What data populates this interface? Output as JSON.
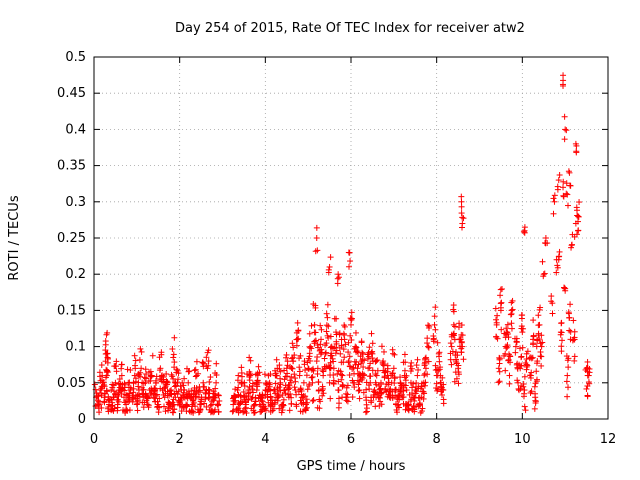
{
  "chart_data": {
    "type": "scatter",
    "title": "Day 254 of 2015, Rate Of TEC Index for receiver atw2",
    "xlabel": "GPS time / hours",
    "ylabel": "ROTI / TECUs",
    "xlim": [
      0,
      12
    ],
    "ylim": [
      0,
      0.5
    ],
    "xticks": [
      0,
      2,
      4,
      6,
      8,
      10,
      12
    ],
    "yticks": [
      0,
      0.05,
      0.1,
      0.15,
      0.2,
      0.25,
      0.3,
      0.35,
      0.4,
      0.45,
      0.5
    ],
    "grid": true,
    "marker": "+",
    "color": "#ff0000",
    "series": [
      {
        "name": "ROTI",
        "x": [
          0.05,
          0.1,
          0.15,
          0.2,
          0.25,
          0.28,
          0.3,
          0.35,
          0.4,
          0.45,
          0.5,
          0.55,
          0.6,
          0.65,
          0.7,
          0.75,
          0.8,
          0.85,
          0.9,
          0.95,
          1.0,
          1.05,
          1.1,
          1.15,
          1.2,
          1.25,
          1.3,
          1.35,
          1.4,
          1.45,
          1.5,
          1.55,
          1.6,
          1.65,
          1.7,
          1.75,
          1.8,
          1.85,
          1.9,
          1.95,
          2.0,
          2.05,
          2.1,
          2.15,
          2.2,
          2.25,
          2.3,
          2.35,
          2.4,
          2.45,
          2.5,
          2.55,
          2.6,
          2.65,
          2.7,
          2.75,
          2.8,
          2.85,
          2.9,
          3.25,
          3.3,
          3.35,
          3.4,
          3.45,
          3.5,
          3.55,
          3.6,
          3.65,
          3.7,
          3.75,
          3.8,
          3.85,
          3.9,
          3.95,
          4.0,
          4.05,
          4.1,
          4.15,
          4.2,
          4.25,
          4.3,
          4.35,
          4.4,
          4.45,
          4.5,
          4.55,
          4.6,
          4.65,
          4.7,
          4.75,
          4.8,
          4.85,
          4.9,
          4.95,
          5.0,
          5.05,
          5.1,
          5.15,
          5.2,
          5.25,
          5.3,
          5.35,
          5.4,
          5.45,
          5.5,
          5.55,
          5.6,
          5.65,
          5.7,
          5.75,
          5.8,
          5.85,
          5.9,
          5.95,
          6.0,
          6.05,
          6.1,
          6.15,
          6.2,
          6.25,
          6.3,
          6.35,
          6.4,
          6.45,
          6.5,
          6.55,
          6.6,
          6.65,
          6.7,
          6.75,
          6.8,
          6.85,
          6.9,
          6.95,
          7.0,
          7.05,
          7.1,
          7.15,
          7.2,
          7.25,
          7.3,
          7.35,
          7.4,
          7.45,
          7.5,
          7.55,
          7.6,
          7.65,
          7.7,
          7.75,
          7.8,
          7.95,
          8.0,
          8.05,
          8.1,
          8.15,
          8.35,
          8.4,
          8.45,
          8.5,
          8.55,
          8.6,
          9.4,
          9.45,
          9.5,
          9.6,
          9.65,
          9.7,
          9.75,
          9.85,
          9.9,
          9.95,
          10.0,
          10.05,
          10.1,
          10.2,
          10.25,
          10.3,
          10.35,
          10.4,
          10.45,
          10.5,
          10.55,
          10.7,
          10.75,
          10.85,
          10.9,
          10.95,
          11.0,
          11.05,
          11.1,
          11.15,
          11.2,
          11.25,
          11.3,
          11.5,
          11.55,
          0.3,
          1.85,
          5.2,
          5.5,
          5.7,
          5.95,
          8.58,
          8.6,
          10.05,
          10.95,
          11.0,
          11.05,
          11.1,
          11.25,
          11.3,
          10.8,
          10.85
        ],
        "y": [
          0.03,
          0.02,
          0.04,
          0.05,
          0.03,
          0.09,
          0.06,
          0.02,
          0.04,
          0.03,
          0.05,
          0.02,
          0.04,
          0.06,
          0.03,
          0.02,
          0.05,
          0.04,
          0.03,
          0.06,
          0.02,
          0.04,
          0.07,
          0.03,
          0.05,
          0.02,
          0.04,
          0.06,
          0.03,
          0.05,
          0.02,
          0.07,
          0.04,
          0.03,
          0.05,
          0.02,
          0.04,
          0.02,
          0.03,
          0.05,
          0.02,
          0.03,
          0.04,
          0.02,
          0.05,
          0.03,
          0.02,
          0.04,
          0.06,
          0.03,
          0.02,
          0.05,
          0.03,
          0.07,
          0.04,
          0.02,
          0.03,
          0.05,
          0.02,
          0.02,
          0.03,
          0.04,
          0.02,
          0.05,
          0.03,
          0.02,
          0.04,
          0.06,
          0.03,
          0.02,
          0.04,
          0.05,
          0.03,
          0.02,
          0.04,
          0.03,
          0.05,
          0.02,
          0.04,
          0.06,
          0.03,
          0.05,
          0.02,
          0.04,
          0.07,
          0.03,
          0.05,
          0.08,
          0.04,
          0.11,
          0.06,
          0.03,
          0.05,
          0.02,
          0.07,
          0.1,
          0.05,
          0.13,
          0.08,
          0.04,
          0.11,
          0.06,
          0.09,
          0.14,
          0.05,
          0.1,
          0.07,
          0.12,
          0.04,
          0.09,
          0.06,
          0.11,
          0.03,
          0.08,
          0.13,
          0.05,
          0.1,
          0.07,
          0.04,
          0.08,
          0.06,
          0.03,
          0.07,
          0.05,
          0.09,
          0.04,
          0.06,
          0.03,
          0.05,
          0.08,
          0.04,
          0.06,
          0.03,
          0.05,
          0.07,
          0.04,
          0.02,
          0.05,
          0.03,
          0.06,
          0.04,
          0.02,
          0.05,
          0.03,
          0.04,
          0.06,
          0.02,
          0.03,
          0.05,
          0.07,
          0.1,
          0.13,
          0.06,
          0.09,
          0.05,
          0.04,
          0.1,
          0.13,
          0.08,
          0.07,
          0.11,
          0.1,
          0.13,
          0.07,
          0.15,
          0.09,
          0.12,
          0.06,
          0.15,
          0.1,
          0.05,
          0.07,
          0.12,
          0.04,
          0.09,
          0.06,
          0.11,
          0.03,
          0.08,
          0.13,
          0.1,
          0.2,
          0.25,
          0.16,
          0.3,
          0.22,
          0.12,
          0.32,
          0.18,
          0.06,
          0.14,
          0.24,
          0.11,
          0.27,
          0.26,
          0.07,
          0.06,
          0.09,
          0.085,
          0.25,
          0.21,
          0.2,
          0.23,
          0.3,
          0.27,
          0.26,
          0.46,
          0.4,
          0.31,
          0.34,
          0.38,
          0.28,
          0.22,
          0.33
        ],
        "jitter_note": "dense clusters of points in each hour band"
      }
    ]
  }
}
